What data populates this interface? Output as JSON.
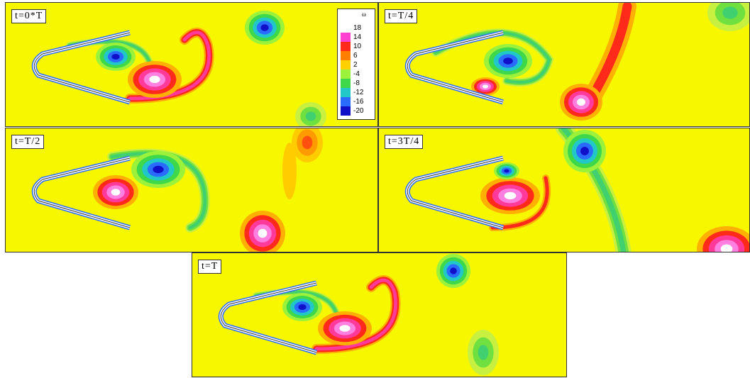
{
  "panels": [
    {
      "label": "t=0*T"
    },
    {
      "label": "t=T/4"
    },
    {
      "label": "t=T/2"
    },
    {
      "label": "t=3T/4"
    },
    {
      "label": "t=T"
    }
  ],
  "colorbar": {
    "title": "ω",
    "labels": [
      "18",
      "14",
      "10",
      "6",
      "2",
      "-4",
      "-8",
      "-12",
      "-16",
      "-20"
    ]
  }
}
